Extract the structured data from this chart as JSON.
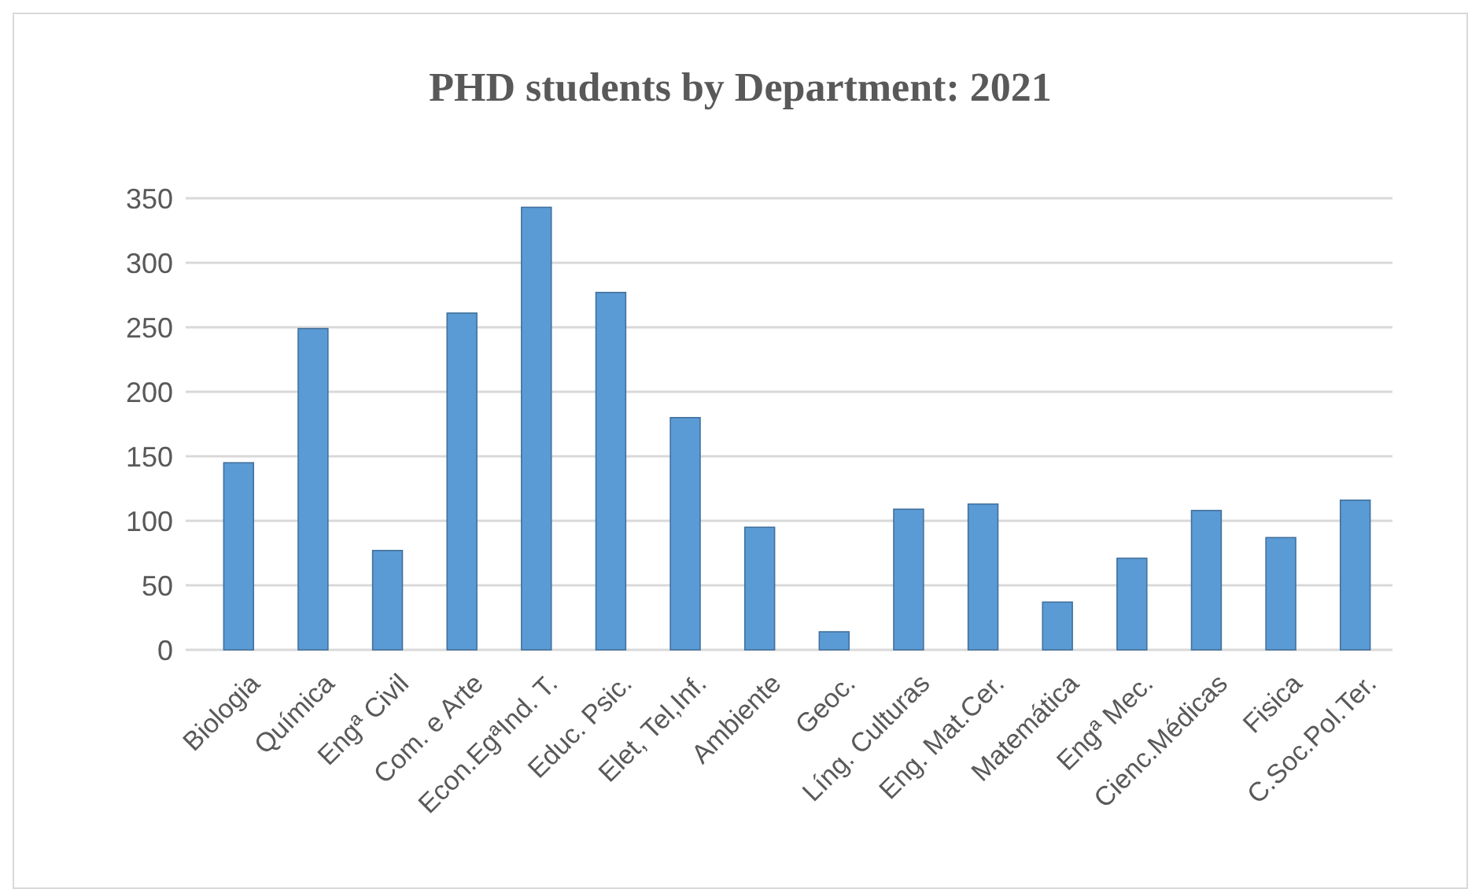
{
  "chart_data": {
    "type": "bar",
    "title": "PHD students by Department: 2021",
    "categories": [
      "Biologia",
      "Química",
      "Engª Civil",
      "Com. e Arte",
      "Econ.EgªInd. T.",
      "Educ. Psic.",
      "Elet, Tel,Inf.",
      "Ambiente",
      "Geoc.",
      "Líng. Culturas",
      "Eng. Mat.Cer.",
      "Matemática",
      "Engª Mec.",
      "Cienc.Médicas",
      "Fisica",
      "C.Soc.Pol.Ter."
    ],
    "values": [
      145,
      249,
      77,
      261,
      343,
      277,
      180,
      95,
      14,
      109,
      113,
      37,
      71,
      108,
      87,
      116
    ],
    "color": "#5b9bd5",
    "ylim": [
      0,
      350
    ],
    "yticks": [
      0,
      50,
      100,
      150,
      200,
      250,
      300,
      350
    ],
    "grid": "y"
  }
}
